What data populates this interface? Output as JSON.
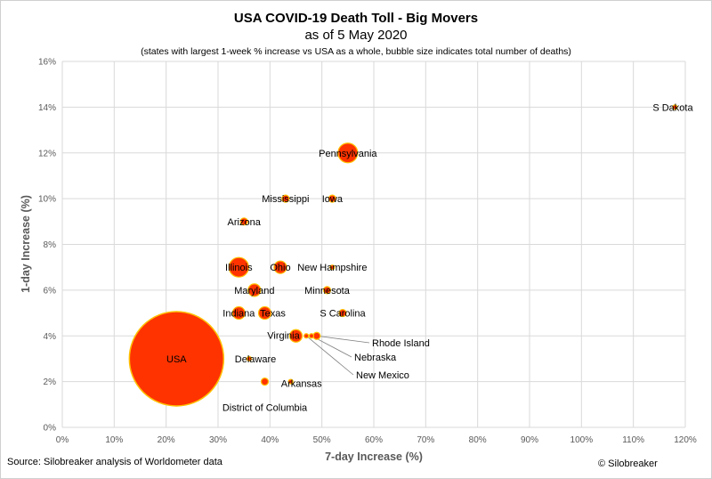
{
  "chart_data": {
    "type": "scatter",
    "title": "USA COVID-19 Death Toll - Big Movers",
    "subtitle": "as of 5 May 2020",
    "note": "(states with largest 1-week % increase vs USA as a whole, bubble size indicates total number of deaths)",
    "xlabel": "7-day Increase (%)",
    "ylabel": "1-day Increase (%)",
    "xlim": [
      0,
      120
    ],
    "ylim": [
      0,
      16
    ],
    "x_ticks": [
      "0%",
      "10%",
      "20%",
      "30%",
      "40%",
      "50%",
      "60%",
      "70%",
      "80%",
      "90%",
      "100%",
      "110%",
      "120%"
    ],
    "y_ticks": [
      "0%",
      "2%",
      "4%",
      "6%",
      "8%",
      "10%",
      "12%",
      "14%",
      "16%"
    ],
    "grid": true,
    "points": [
      {
        "label": "USA",
        "x": 22,
        "y": 3,
        "size": "very large"
      },
      {
        "label": "S Dakota",
        "x": 118,
        "y": 14,
        "size": "tiny"
      },
      {
        "label": "Pennsylvania",
        "x": 55,
        "y": 12,
        "size": "large"
      },
      {
        "label": "Mississippi",
        "x": 43,
        "y": 10,
        "size": "small"
      },
      {
        "label": "Iowa",
        "x": 52,
        "y": 10,
        "size": "small"
      },
      {
        "label": "Arizona",
        "x": 35,
        "y": 9,
        "size": "small"
      },
      {
        "label": "Illinois",
        "x": 34,
        "y": 7,
        "size": "large"
      },
      {
        "label": "Ohio",
        "x": 42,
        "y": 7,
        "size": "medium"
      },
      {
        "label": "New Hampshire",
        "x": 52,
        "y": 7,
        "size": "tiny"
      },
      {
        "label": "Maryland",
        "x": 37,
        "y": 6,
        "size": "medium"
      },
      {
        "label": "Minnesota",
        "x": 51,
        "y": 6,
        "size": "small"
      },
      {
        "label": "Indiana",
        "x": 34,
        "y": 5,
        "size": "medium"
      },
      {
        "label": "Texas",
        "x": 39,
        "y": 5,
        "size": "medium"
      },
      {
        "label": "S Carolina",
        "x": 54,
        "y": 5,
        "size": "small"
      },
      {
        "label": "Virginia",
        "x": 45,
        "y": 4,
        "size": "medium"
      },
      {
        "label": "Rhode Island",
        "x": 49,
        "y": 4,
        "size": "small"
      },
      {
        "label": "Nebraska",
        "x": 48,
        "y": 4,
        "size": "tiny"
      },
      {
        "label": "New Mexico",
        "x": 47,
        "y": 4,
        "size": "tiny"
      },
      {
        "label": "Delaware",
        "x": 36,
        "y": 3,
        "size": "tiny"
      },
      {
        "label": "District of Columbia",
        "x": 39,
        "y": 2,
        "size": "small"
      },
      {
        "label": "Arkansas",
        "x": 44,
        "y": 2,
        "size": "tiny"
      }
    ],
    "colors": {
      "fill": "#ff3300",
      "stroke": "#ffc000"
    }
  },
  "footer": {
    "source": "Source: Silobreaker analysis of Worldometer data",
    "credit": "© Silobreaker"
  }
}
